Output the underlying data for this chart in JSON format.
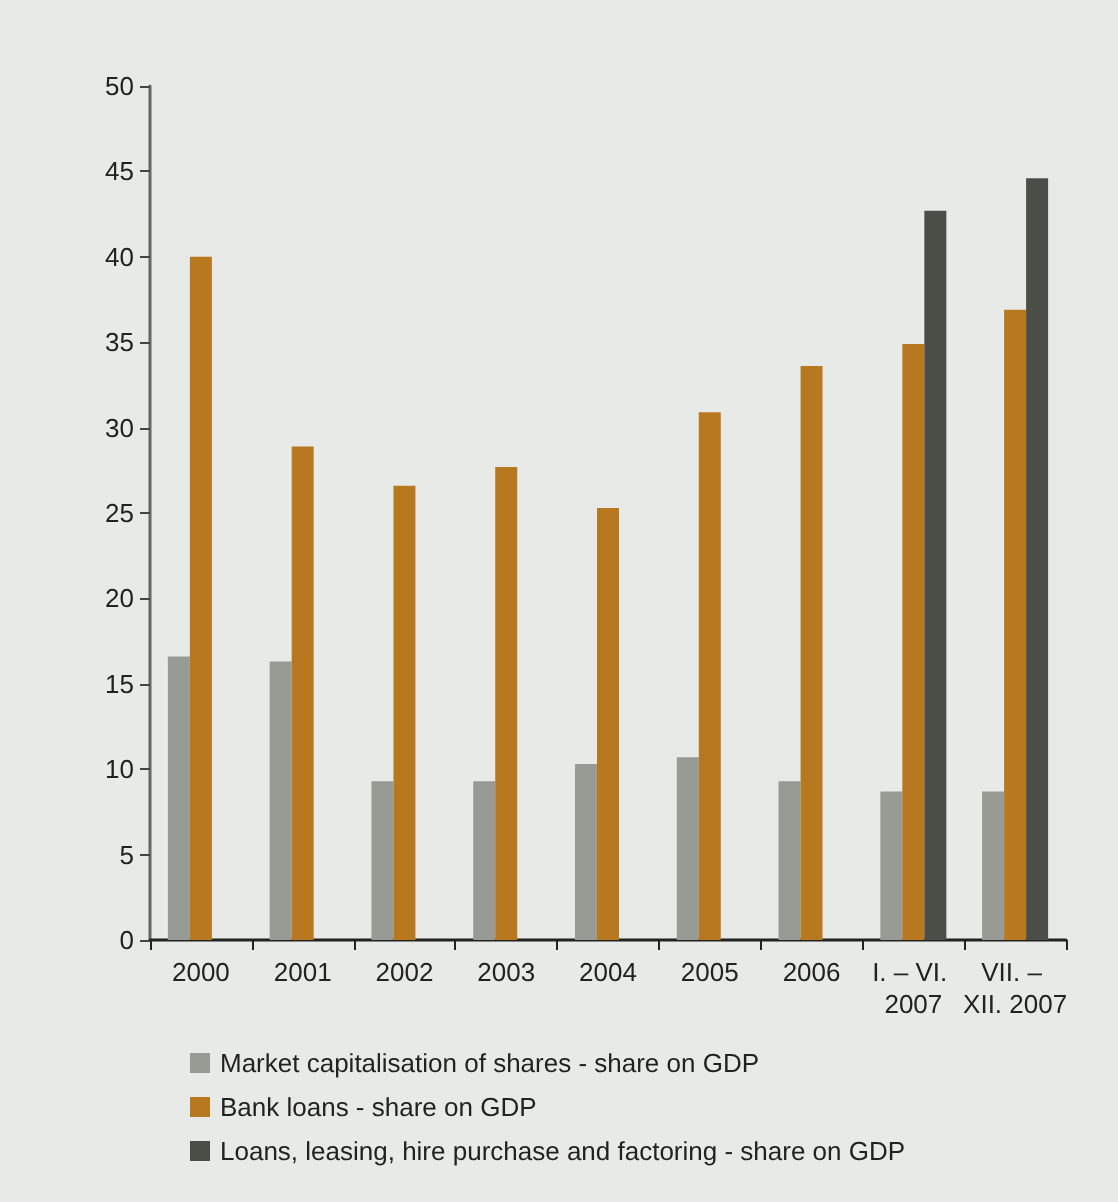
{
  "chart_data": {
    "type": "bar",
    "categories": [
      "2000",
      "2001",
      "2002",
      "2003",
      "2004",
      "2005",
      "2006",
      "I. – VI. 2007",
      "VII. – XII. 2007"
    ],
    "series": [
      {
        "name": "Market capitalisation of shares - share on GDP",
        "color": "#979b94",
        "values": [
          16.6,
          16.3,
          9.3,
          9.3,
          10.3,
          10.7,
          9.3,
          8.7,
          8.7
        ]
      },
      {
        "name": "Bank loans - share on GDP",
        "color": "#b87820",
        "values": [
          40,
          28.9,
          26.6,
          27.7,
          25.3,
          30.9,
          33.6,
          34.9,
          36.9
        ]
      },
      {
        "name": "Loans, leasing, hire purchase and factoring - share on GDP",
        "color": "#4a4e47",
        "values": [
          null,
          null,
          null,
          null,
          null,
          null,
          null,
          42.7,
          44.6
        ]
      }
    ],
    "ylim": [
      0,
      50
    ],
    "yticks": [
      0,
      5,
      10,
      15,
      20,
      25,
      30,
      35,
      40,
      45,
      50
    ],
    "grid": false,
    "legend": "bottom"
  }
}
